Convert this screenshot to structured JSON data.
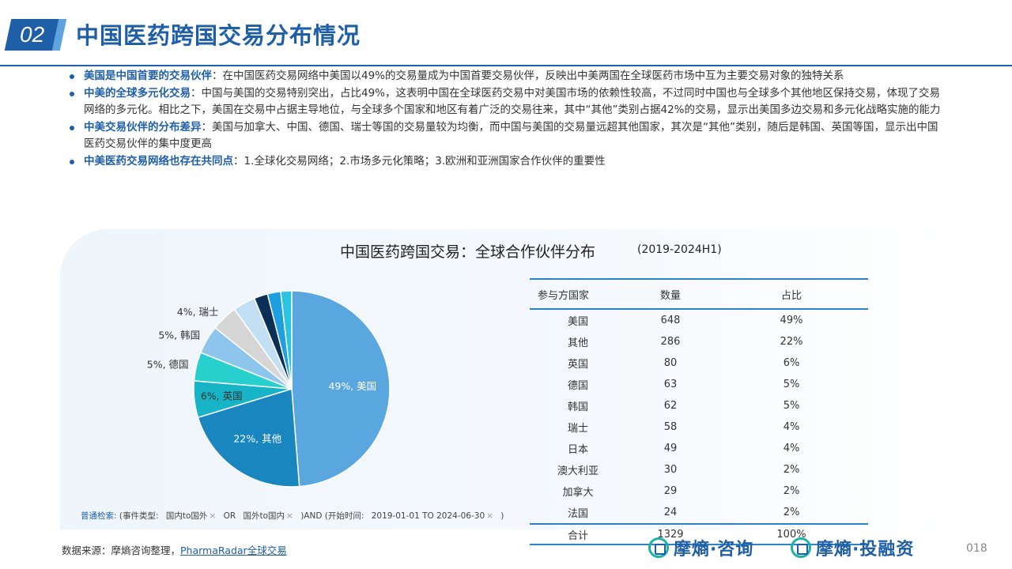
{
  "header": {
    "section_number": "02",
    "title": "中国医药跨国交易分布情况"
  },
  "bullets": [
    {
      "keyword": "美国是中国首要的交易伙伴",
      "text": "：在中国医药交易网络中美国以49%的交易量成为中国首要交易伙伴，反映出中美两国在全球医药市场中互为主要交易对象的独特关系"
    },
    {
      "keyword": "中美的全球多元化交易",
      "text": "：中国与美国的交易特别突出，占比49%，这表明中国在全球医药交易中对美国市场的依赖性较高，不过同时中国也与全球多个其他地区保持交易，体现了交易网络的多元化。相比之下，美国在交易中占据主导地位，与全球多个国家和地区有着广泛的交易往来，其中“其他”类别占据42%的交易，显示出美国多边交易和多元化战略实施的能力"
    },
    {
      "keyword": "中美交易伙伴的分布差异",
      "text": "：美国与加拿大、中国、德国、瑞士等国的交易量较为均衡，而中国与美国的交易量远超其他国家，其次是“其他”类别，随后是韩国、英国等国，显示出中国医药交易伙伴的集中度更高"
    },
    {
      "keyword": "中美医药交易网络也存在共同点",
      "text": "：1.全球化交易网络；2.市场多元化策略；3.欧洲和亚洲国家合作伙伴的重要性"
    }
  ],
  "chart_data": {
    "type": "pie",
    "title": "中国医药跨国交易：全球合作伙伴分布",
    "subtitle": "(2019-2024H1)",
    "slices": [
      {
        "name": "美国",
        "value": 648,
        "label": "49%, 美国",
        "color": "#5aa6de"
      },
      {
        "name": "其他",
        "value": 286,
        "label": "22%, 其他",
        "color": "#1a86c0"
      },
      {
        "name": "英国",
        "value": 80,
        "label": "6%, 英国",
        "color": "#16b4c6"
      },
      {
        "name": "德国",
        "value": 63,
        "label": "5%, 德国",
        "color": "#27d0cc"
      },
      {
        "name": "韩国",
        "value": 62,
        "label": "5%, 韩国",
        "color": "#8ec5ec"
      },
      {
        "name": "瑞士",
        "value": 58,
        "label": "4%, 瑞士",
        "color": "#d6d6d6"
      },
      {
        "name": "日本",
        "value": 49,
        "label": "",
        "color": "#c3dff3"
      },
      {
        "name": "澳大利亚",
        "value": 30,
        "label": "",
        "color": "#0b2f55"
      },
      {
        "name": "加拿大",
        "value": 29,
        "label": "",
        "color": "#1ea0e0"
      },
      {
        "name": "法国",
        "value": 24,
        "label": "",
        "color": "#2cc4e4"
      }
    ]
  },
  "table": {
    "headers": [
      "参与方国家",
      "数量",
      "占比"
    ],
    "rows": [
      [
        "美国",
        "648",
        "49%"
      ],
      [
        "其他",
        "286",
        "22%"
      ],
      [
        "英国",
        "80",
        "6%"
      ],
      [
        "德国",
        "63",
        "5%"
      ],
      [
        "韩国",
        "62",
        "5%"
      ],
      [
        "瑞士",
        "58",
        "4%"
      ],
      [
        "日本",
        "49",
        "4%"
      ],
      [
        "澳大利亚",
        "30",
        "2%"
      ],
      [
        "加拿大",
        "29",
        "2%"
      ],
      [
        "法国",
        "24",
        "2%"
      ]
    ],
    "total": [
      "合计",
      "1329",
      "100%"
    ]
  },
  "query": {
    "head": "普通检索:",
    "part1": "(事件类型:",
    "chip1": "国内to国外",
    "or": "OR",
    "chip2": "国外to国内",
    "part2": ")AND (开始时间:",
    "chip3": "2019-01-01 TO 2024-06-30",
    "close": ")",
    "x_mark": "×"
  },
  "footer": {
    "source_prefix": "数据来源：摩熵咨询整理，",
    "source_link": "PharmaRadar全球交易",
    "brand1": "摩熵·咨询",
    "brand2": "摩熵·投融资",
    "page_number": "018"
  }
}
